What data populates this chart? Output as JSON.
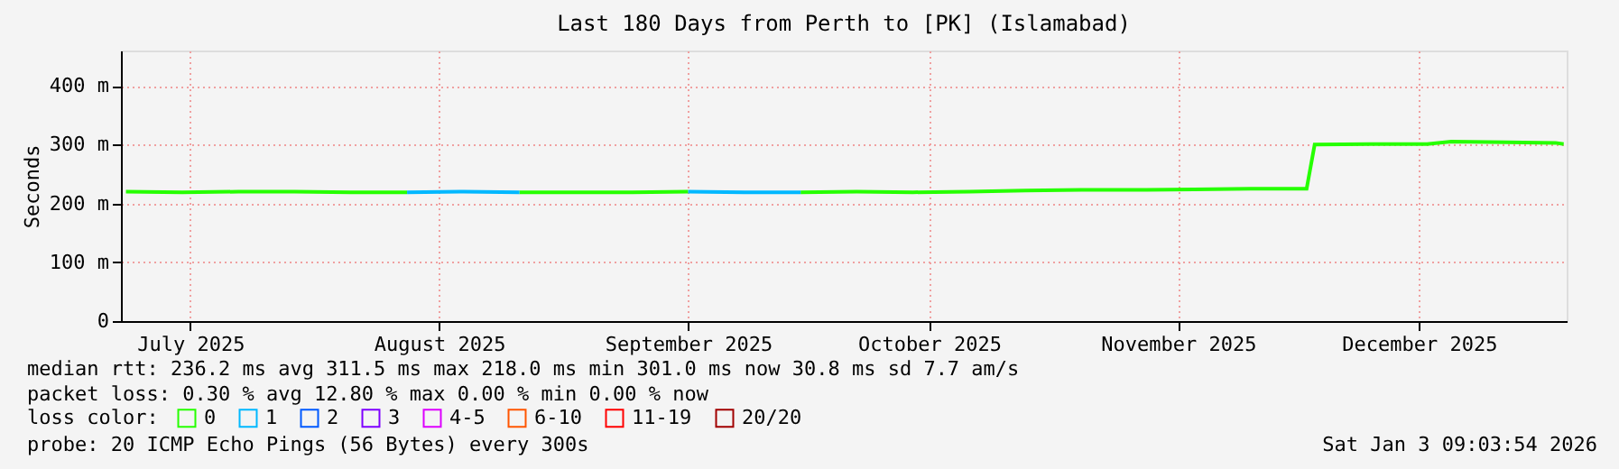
{
  "chart_data": {
    "type": "line",
    "title": "Last 180 Days from Perth to [PK] (Islamabad)",
    "ylabel": "Seconds",
    "legend_title": "loss color:",
    "x": [
      "2025-07-08",
      "2025-07-15",
      "2025-07-22",
      "2025-07-29",
      "2025-08-05",
      "2025-08-12",
      "2025-08-19",
      "2025-08-26",
      "2025-09-02",
      "2025-09-09",
      "2025-09-16",
      "2025-09-23",
      "2025-09-30",
      "2025-10-07",
      "2025-10-14",
      "2025-10-21",
      "2025-10-28",
      "2025-11-04",
      "2025-11-11",
      "2025-11-18",
      "2025-11-25",
      "2025-12-02",
      "2025-12-03",
      "2025-12-10",
      "2025-12-17",
      "2025-12-20",
      "2025-12-27",
      "2026-01-02",
      "2026-01-03"
    ],
    "series": [
      {
        "name": "0",
        "color": "#26ff00",
        "values": [
          220,
          219,
          220,
          220,
          219,
          219,
          null,
          219,
          219,
          219,
          220,
          null,
          219,
          220,
          219,
          220,
          222,
          223,
          223,
          224,
          225,
          225,
          300,
          301,
          301,
          305,
          304,
          303,
          301
        ]
      },
      {
        "name": "1",
        "color": "#00b8ff",
        "values": [
          null,
          null,
          null,
          null,
          null,
          219,
          220,
          219,
          null,
          null,
          220,
          219,
          219,
          null,
          null,
          null,
          null,
          null,
          null,
          null,
          null,
          null,
          null,
          null,
          null,
          null,
          null,
          null,
          null
        ]
      },
      {
        "name": "2",
        "color": "#0059ff",
        "values": [
          null,
          null,
          null,
          null,
          null,
          null,
          null,
          null,
          null,
          null,
          null,
          null,
          null,
          null,
          null,
          null,
          null,
          null,
          null,
          null,
          null,
          null,
          null,
          null,
          null,
          null,
          null,
          null,
          null
        ]
      },
      {
        "name": "3",
        "color": "#7e00ff",
        "values": [
          null,
          null,
          null,
          null,
          null,
          null,
          null,
          null,
          null,
          null,
          null,
          null,
          null,
          null,
          null,
          null,
          null,
          null,
          null,
          null,
          null,
          null,
          null,
          null,
          null,
          null,
          null,
          null,
          null
        ]
      },
      {
        "name": "4-5",
        "color": "#dd00ff",
        "values": [
          null,
          null,
          null,
          null,
          null,
          null,
          null,
          null,
          null,
          null,
          null,
          null,
          null,
          null,
          null,
          null,
          null,
          null,
          null,
          null,
          null,
          null,
          null,
          null,
          null,
          null,
          null,
          null,
          null
        ]
      },
      {
        "name": "6-10",
        "color": "#ff5500",
        "values": [
          null,
          null,
          null,
          null,
          null,
          null,
          null,
          null,
          null,
          null,
          null,
          null,
          null,
          null,
          null,
          null,
          null,
          null,
          null,
          null,
          null,
          null,
          null,
          null,
          null,
          null,
          null,
          null,
          null
        ]
      },
      {
        "name": "11-19",
        "color": "#ff0000",
        "values": [
          null,
          null,
          null,
          null,
          null,
          null,
          null,
          null,
          null,
          null,
          null,
          null,
          null,
          null,
          null,
          null,
          null,
          null,
          null,
          null,
          null,
          null,
          null,
          null,
          null,
          null,
          null,
          null,
          null
        ]
      },
      {
        "name": "20/20",
        "color": "#a10000",
        "values": [
          null,
          null,
          null,
          null,
          null,
          null,
          null,
          null,
          null,
          null,
          null,
          null,
          null,
          null,
          null,
          null,
          null,
          null,
          null,
          null,
          null,
          null,
          null,
          null,
          null,
          null,
          null,
          null,
          null
        ]
      }
    ],
    "xlim": [
      "2025-07-07T09:00",
      "2026-01-03T09:00"
    ],
    "xticks": [
      {
        "value": "2025-07-16",
        "label": "July 2025"
      },
      {
        "value": "2025-08-16",
        "label": "August 2025"
      },
      {
        "value": "2025-09-16",
        "label": "September 2025"
      },
      {
        "value": "2025-10-16",
        "label": "October 2025"
      },
      {
        "value": "2025-11-16",
        "label": "November 2025"
      },
      {
        "value": "2025-12-16",
        "label": "December 2025"
      }
    ],
    "ylim": [
      0,
      460
    ],
    "yticks": [
      0,
      {
        "value": 100,
        "label": "100 m"
      },
      {
        "value": 200,
        "label": "200 m"
      },
      {
        "value": 300,
        "label": "300 m"
      },
      {
        "value": 400,
        "label": "400 m"
      }
    ],
    "grid": true,
    "legend": "bottom",
    "annotations": [
      "median rtt:  236.2 ms avg  311.5 ms max  218.0 ms min  301.0 ms now  30.8 ms sd  7.7   am/s",
      "packet loss: 0.30 % avg  12.80 % max  0.00 % min  0.00 % now",
      "probe:       20 ICMP Echo Pings (56 Bytes) every 300s",
      "Sat Jan  3 09:03:54 2026"
    ]
  }
}
